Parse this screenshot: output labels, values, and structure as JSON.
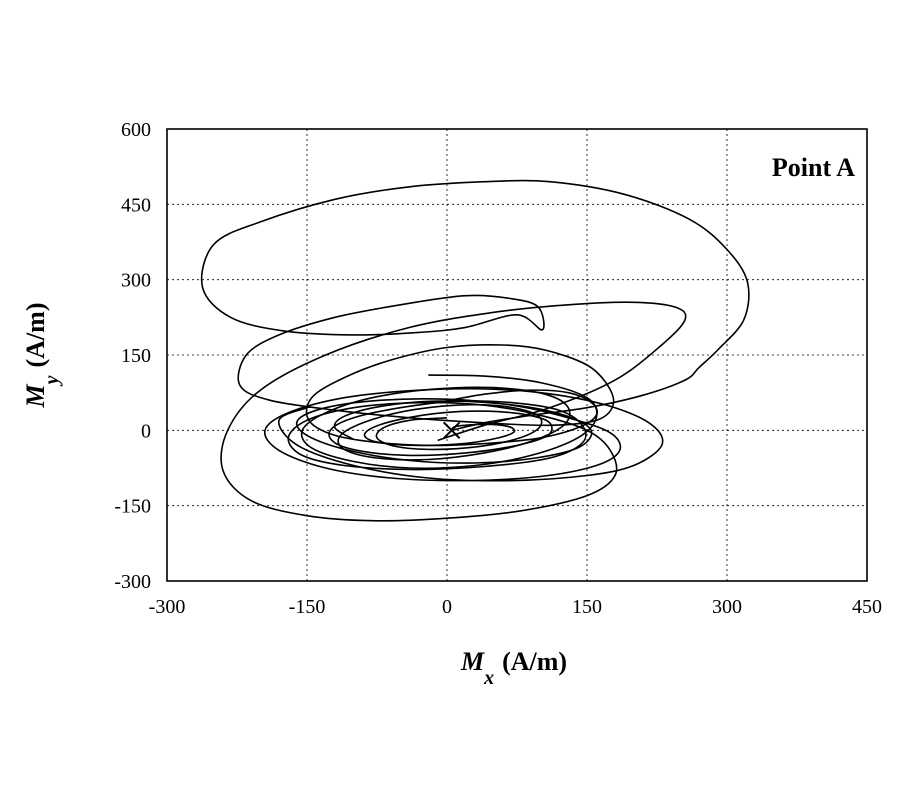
{
  "chart_data": {
    "type": "line",
    "title": "",
    "annotation": "Point A",
    "xlabel": {
      "symbol": "M",
      "subscript": "x",
      "unit": "(A/m)"
    },
    "ylabel": {
      "symbol": "M",
      "subscript": "y",
      "unit": "(A/m)"
    },
    "xlim": [
      -300,
      450
    ],
    "ylim": [
      -300,
      600
    ],
    "xticks": [
      "-300",
      "-150",
      "0",
      "150",
      "300",
      "450"
    ],
    "yticks": [
      "600",
      "450",
      "300",
      "150",
      "0",
      "-150",
      "-300"
    ],
    "grid": true,
    "series": [
      {
        "x": [
          5,
          40,
          90,
          150,
          210,
          255,
          270,
          290,
          318,
          322,
          300,
          260,
          190,
          110,
          40,
          -40,
          -120,
          -200,
          -250,
          -262,
          -232,
          -175,
          -100,
          -30,
          20,
          75,
          102,
          98,
          70,
          20,
          -50,
          -120,
          -180,
          -215,
          -222,
          -190,
          -120,
          -40,
          40,
          110,
          160,
          178,
          172,
          150,
          105,
          60,
          0,
          -60,
          -110,
          -145,
          -148,
          -120,
          -70,
          -10,
          50,
          100,
          140,
          160,
          155,
          130,
          90,
          40,
          -10
        ],
        "y": [
          0,
          15,
          30,
          45,
          70,
          100,
          125,
          160,
          220,
          295,
          360,
          420,
          470,
          495,
          495,
          485,
          460,
          415,
          370,
          285,
          225,
          198,
          190,
          195,
          205,
          230,
          200,
          245,
          262,
          268,
          250,
          225,
          190,
          150,
          90,
          60,
          40,
          25,
          15,
          10,
          20,
          50,
          90,
          130,
          160,
          170,
          165,
          140,
          105,
          65,
          20,
          -10,
          -25,
          -30,
          -25,
          -15,
          5,
          30,
          55,
          75,
          80,
          72,
          55
        ]
      },
      {
        "x": [
          -10,
          40,
          110,
          180,
          230,
          255,
          245,
          200,
          130,
          50,
          -40,
          -130,
          -200,
          -235,
          -240,
          -210,
          -150,
          -80,
          0,
          80,
          150,
          180,
          175,
          150,
          100,
          40,
          -30,
          -100,
          -150,
          -170,
          -155,
          -110,
          -40,
          40,
          110,
          145,
          145,
          120,
          70,
          10,
          -50,
          -100,
          -125,
          -120,
          -90,
          -40,
          20,
          75,
          108,
          110,
          88,
          45,
          -5,
          -50,
          -80,
          -88,
          -70,
          -30,
          20,
          55,
          72,
          65,
          40,
          10,
          5
        ],
        "y": [
          -20,
          10,
          45,
          100,
          170,
          220,
          245,
          255,
          250,
          235,
          205,
          150,
          80,
          0,
          -80,
          -140,
          -170,
          -180,
          -175,
          -160,
          -130,
          -90,
          -40,
          0,
          30,
          50,
          55,
          45,
          20,
          -15,
          -50,
          -70,
          -78,
          -72,
          -55,
          -25,
          10,
          40,
          55,
          58,
          45,
          25,
          0,
          -25,
          -42,
          -50,
          -45,
          -30,
          -10,
          15,
          30,
          38,
          35,
          22,
          5,
          -12,
          -25,
          -30,
          -26,
          -15,
          -3,
          8,
          12,
          8,
          0
        ]
      },
      {
        "x": [
          -150,
          -180,
          -160,
          -100,
          -20,
          70,
          150,
          200,
          230,
          220,
          180,
          120,
          50,
          -30,
          -110,
          -170,
          -195,
          -180,
          -130,
          -60,
          20,
          100,
          160,
          185,
          175,
          130,
          70,
          0,
          -70,
          -130,
          -160,
          -150,
          -105,
          -40,
          30,
          95,
          140,
          155,
          140,
          100,
          45,
          -15,
          -70,
          -110,
          -120,
          -100
        ],
        "y": [
          45,
          20,
          -30,
          -70,
          -95,
          -100,
          -90,
          -70,
          -30,
          10,
          45,
          70,
          82,
          80,
          65,
          35,
          0,
          -40,
          -75,
          -95,
          -100,
          -92,
          -70,
          -40,
          -5,
          25,
          50,
          62,
          60,
          45,
          20,
          -10,
          -40,
          -60,
          -65,
          -55,
          -35,
          -5,
          20,
          42,
          55,
          58,
          48,
          28,
          5,
          -18
        ]
      },
      {
        "x": [
          -20,
          40,
          100,
          150,
          160,
          140,
          90,
          30,
          -40,
          -100,
          -145,
          -155,
          -130,
          -80,
          -15,
          50,
          105,
          130,
          125,
          90,
          40,
          -20,
          -75,
          -110,
          -115,
          -90,
          -45,
          10,
          60,
          95,
          100,
          78,
          35,
          -15,
          -55,
          -75,
          -68,
          -40,
          0
        ],
        "y": [
          110,
          108,
          95,
          65,
          25,
          -15,
          -50,
          -70,
          -75,
          -62,
          -35,
          0,
          35,
          65,
          82,
          85,
          72,
          45,
          10,
          -22,
          -45,
          -58,
          -55,
          -38,
          -12,
          15,
          38,
          50,
          48,
          32,
          8,
          -15,
          -32,
          -38,
          -32,
          -15,
          5,
          20,
          25
        ]
      }
    ]
  }
}
